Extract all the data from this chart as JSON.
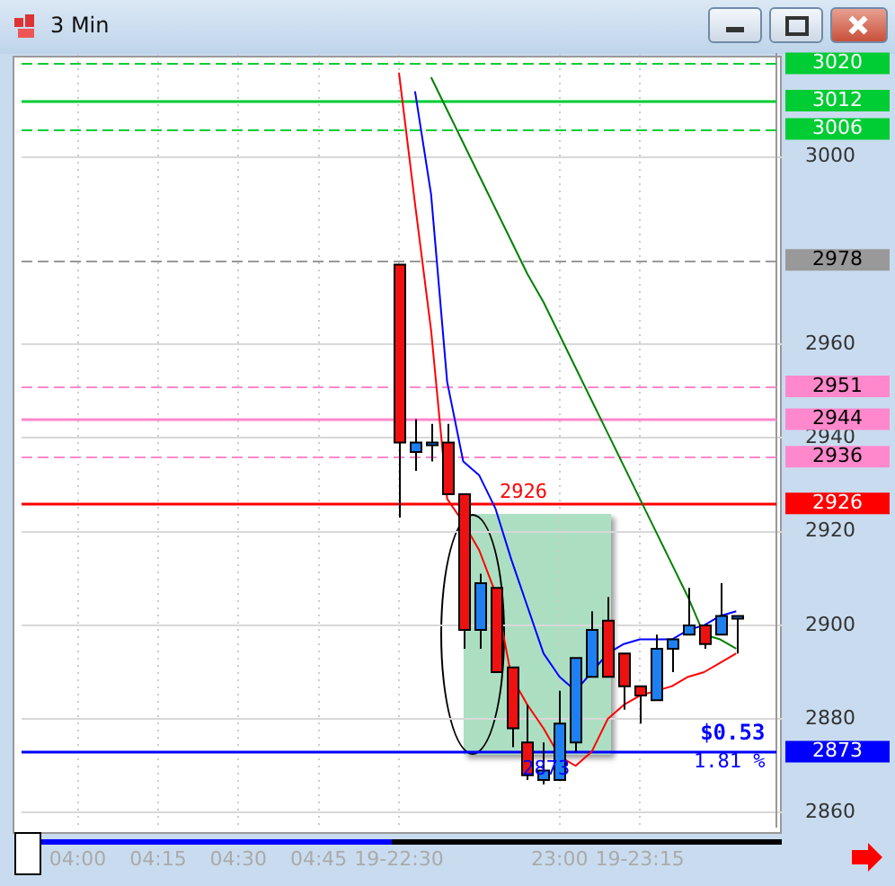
{
  "chart_data": {
    "type": "candlestick",
    "title": "3 Min",
    "categories": [
      null,
      null,
      null,
      "04:00",
      null,
      null,
      null,
      null,
      "04:15",
      null,
      null,
      null,
      null,
      "04:30",
      null,
      null,
      null,
      null,
      "04:45",
      null,
      null,
      null,
      null,
      "19-22:30",
      null,
      null,
      null,
      null,
      null,
      null,
      null,
      null,
      null,
      "23:00",
      null,
      null,
      null,
      null,
      "19-23:15",
      null,
      null,
      null,
      null,
      null,
      null,
      null,
      null
    ],
    "ohlc": [
      null,
      null,
      null,
      null,
      null,
      null,
      null,
      null,
      null,
      null,
      null,
      null,
      null,
      null,
      null,
      null,
      null,
      null,
      null,
      null,
      null,
      null,
      null,
      [
        2977,
        2977,
        2923,
        2939
      ],
      [
        2937,
        2944,
        2933,
        2939
      ],
      [
        2939,
        2943,
        2935,
        2939
      ],
      [
        2939,
        2943,
        2928,
        2928
      ],
      [
        2928,
        2928,
        2895,
        2899
      ],
      [
        2899,
        2911,
        2895,
        2909
      ],
      [
        2908,
        2908,
        2890,
        2890
      ],
      [
        2891,
        2891,
        2874,
        2878
      ],
      [
        2875,
        2883,
        2867,
        2868
      ],
      [
        2867,
        2875,
        2866,
        2869
      ],
      [
        2867,
        2886,
        2867,
        2879
      ],
      [
        2875,
        2893,
        2873,
        2893
      ],
      [
        2889,
        2903,
        2889,
        2899
      ],
      [
        2901,
        2906,
        2889,
        2889
      ],
      [
        2894,
        2894,
        2882,
        2887
      ],
      [
        2887,
        2887,
        2879,
        2885
      ],
      [
        2884,
        2898,
        2884,
        2895
      ],
      [
        2895,
        2897,
        2890,
        2897
      ],
      [
        2898,
        2908,
        2898,
        2900
      ],
      [
        2900,
        2900,
        2895,
        2896
      ],
      [
        2898,
        2909,
        2898,
        2902
      ],
      [
        2902,
        2902,
        2894,
        2902
      ],
      null,
      null
    ],
    "series": [
      {
        "type": "line",
        "color": "#ff0000",
        "values": [
          null,
          null,
          null,
          null,
          null,
          null,
          null,
          null,
          null,
          null,
          null,
          null,
          null,
          null,
          null,
          null,
          null,
          null,
          null,
          null,
          null,
          null,
          null,
          3018,
          2990,
          2963,
          2927,
          2922,
          2916,
          2907,
          2889,
          2883,
          2878,
          2872,
          2870,
          2873,
          2880,
          2883,
          2885,
          2886,
          2887,
          2889,
          2890,
          2892,
          2894,
          null,
          null
        ]
      },
      {
        "type": "line",
        "color": "#0000ff",
        "values": [
          null,
          null,
          null,
          null,
          null,
          null,
          null,
          null,
          null,
          null,
          null,
          null,
          null,
          null,
          null,
          null,
          null,
          null,
          null,
          null,
          null,
          null,
          null,
          null,
          3014,
          2992,
          2952,
          2935,
          2932,
          2925,
          2914,
          2904,
          2894,
          2889,
          2886,
          2890,
          2894,
          2896,
          2897,
          2897,
          2897,
          2899,
          2900,
          2902,
          2903,
          null,
          null
        ]
      },
      {
        "type": "line",
        "color": "#008000",
        "values": [
          null,
          null,
          null,
          null,
          null,
          null,
          null,
          null,
          null,
          null,
          null,
          null,
          null,
          null,
          null,
          null,
          null,
          null,
          null,
          null,
          null,
          null,
          null,
          null,
          null,
          3017,
          3010,
          3003,
          2996,
          2989,
          2982,
          2975,
          2969,
          2962,
          2955,
          2948,
          2941,
          2934,
          2927,
          2920,
          2913,
          2906,
          2898,
          2897,
          2895,
          null,
          null
        ]
      }
    ],
    "ylim": [
      2857,
      3022
    ],
    "yticks": [
      2860,
      2880,
      2900,
      2920,
      2940,
      2960,
      3000
    ],
    "grid": true,
    "marker": "none",
    "ref_lines": [
      {
        "axis": "y",
        "value": 3020,
        "label": "3020",
        "color": "#00cc33",
        "line_style": "dashed"
      },
      {
        "axis": "y",
        "value": 3012,
        "label": "3012",
        "color": "#00cc33",
        "line_style": "solid"
      },
      {
        "axis": "y",
        "value": 3006,
        "label": "3006",
        "color": "#00cc33",
        "line_style": "dashed"
      },
      {
        "axis": "y",
        "value": 2978,
        "label": "2978",
        "color": "#999999",
        "line_style": "dashed"
      },
      {
        "axis": "y",
        "value": 2951,
        "label": "2951",
        "color": "#ff88cc",
        "line_style": "dashed"
      },
      {
        "axis": "y",
        "value": 2944,
        "label": "2944",
        "color": "#ff88cc",
        "line_style": "solid"
      },
      {
        "axis": "y",
        "value": 2936,
        "label": "2936",
        "color": "#ff88cc",
        "line_style": "dashed"
      },
      {
        "axis": "y",
        "value": 2926,
        "label": "2926",
        "color": "#ff0000",
        "line_style": "solid"
      },
      {
        "axis": "y",
        "value": 2873,
        "label": "2873",
        "color": "#0000ff",
        "line_style": "solid"
      }
    ],
    "annotations": [
      {
        "text": "2926",
        "y": 2926
      },
      {
        "text": "2873",
        "y": 2873
      },
      {
        "text": "$0.53",
        "y": 2873
      },
      {
        "text": "1.81 %",
        "y": 2873
      }
    ]
  }
}
